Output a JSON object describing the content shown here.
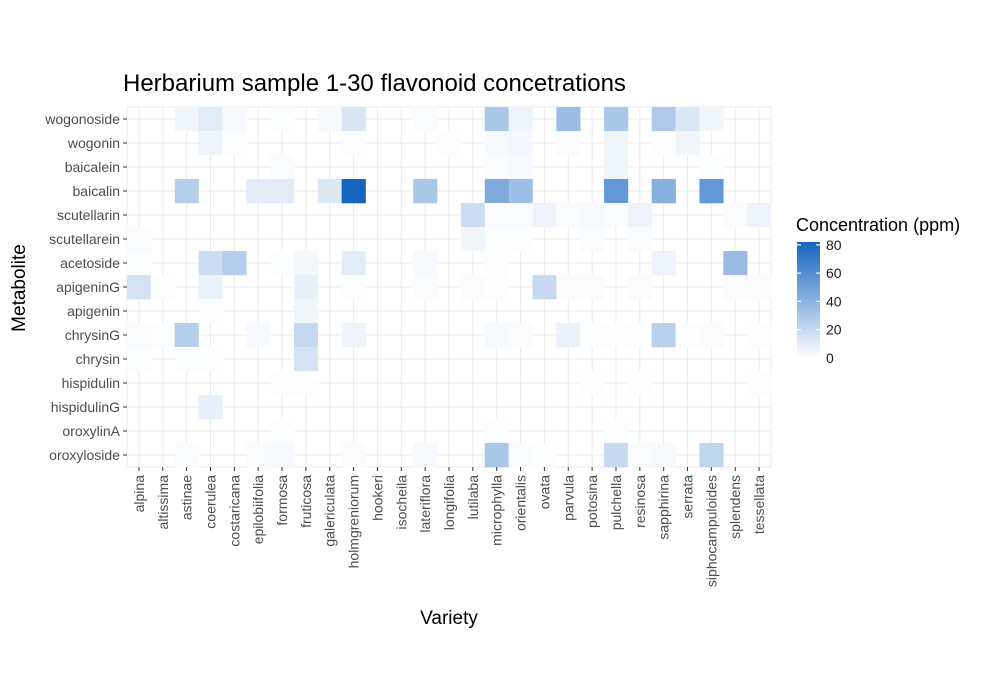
{
  "chart_data": {
    "type": "heatmap",
    "title": "Herbarium sample 1-30 flavonoid concetrations",
    "xlabel": "Variety",
    "ylabel": "Metabolite",
    "x": [
      "alpina",
      "altissima",
      "astinae",
      "coerulea",
      "costaricana",
      "epilobiifolia",
      "formosa",
      "fruticosa",
      "galericulata",
      "holmgreniorum",
      "hookeri",
      "isocheila",
      "lateriflora",
      "longifolia",
      "lutilaba",
      "microphylla",
      "orientalis",
      "ovata",
      "parvula",
      "potosina",
      "pulchella",
      "resinosa",
      "sapphirina",
      "serrata",
      "siphocampuloides",
      "splendens",
      "tessellata"
    ],
    "y": [
      "wogonoside",
      "wogonin",
      "baicalein",
      "baicalin",
      "scutellarin",
      "scutellarein",
      "acetoside",
      "apigeninG",
      "apigenin",
      "chrysinG",
      "chrysin",
      "hispidulin",
      "hispidulinG",
      "oroxylinA",
      "oroxyloside"
    ],
    "values": [
      [
        0,
        0,
        5,
        10,
        3,
        0,
        1,
        0,
        3,
        14,
        0,
        0,
        2,
        0,
        0,
        30,
        6,
        0,
        35,
        0,
        30,
        0,
        28,
        12,
        5,
        0,
        0
      ],
      [
        0,
        0,
        0,
        6,
        1,
        0,
        0,
        0,
        0,
        1,
        0,
        0,
        0,
        1,
        0,
        3,
        4,
        0,
        2,
        0,
        5,
        0,
        1,
        5,
        0,
        0,
        0
      ],
      [
        0,
        0,
        0,
        0,
        0,
        0,
        2,
        0,
        0,
        0,
        0,
        0,
        0,
        0,
        0,
        2,
        3,
        0,
        0,
        0,
        5,
        0,
        0,
        0,
        1,
        0,
        0
      ],
      [
        0,
        0,
        26,
        0,
        0,
        10,
        10,
        0,
        12,
        82,
        0,
        0,
        30,
        0,
        0,
        45,
        34,
        0,
        0,
        0,
        55,
        0,
        42,
        0,
        55,
        0,
        0
      ],
      [
        0,
        0,
        0,
        0,
        0,
        0,
        0,
        0,
        0,
        0,
        0,
        0,
        0,
        0,
        18,
        2,
        2,
        6,
        2,
        3,
        2,
        6,
        0,
        0,
        0,
        2,
        6
      ],
      [
        2,
        0,
        0,
        0,
        0,
        0,
        0,
        0,
        0,
        0,
        0,
        0,
        0,
        0,
        5,
        1,
        1,
        0,
        0,
        2,
        0,
        2,
        0,
        0,
        0,
        0,
        0
      ],
      [
        1,
        0,
        0,
        18,
        26,
        0,
        1,
        4,
        0,
        10,
        0,
        0,
        3,
        0,
        0,
        1,
        0,
        0,
        0,
        0,
        0,
        0,
        6,
        0,
        0,
        36,
        0
      ],
      [
        15,
        1,
        0,
        7,
        0,
        0,
        0,
        8,
        0,
        1,
        0,
        0,
        2,
        0,
        2,
        1,
        0,
        20,
        2,
        2,
        0,
        2,
        0,
        0,
        0,
        2,
        2
      ],
      [
        0,
        0,
        0,
        1,
        0,
        0,
        0,
        5,
        0,
        0,
        0,
        0,
        0,
        0,
        0,
        0,
        0,
        0,
        0,
        0,
        0,
        0,
        0,
        0,
        0,
        0,
        0
      ],
      [
        2,
        1,
        26,
        0,
        0,
        3,
        0,
        20,
        0,
        6,
        0,
        0,
        0,
        0,
        0,
        3,
        2,
        0,
        7,
        1,
        1,
        1,
        25,
        1,
        2,
        0,
        1
      ],
      [
        1,
        0,
        1,
        1,
        0,
        0,
        0,
        15,
        0,
        0,
        0,
        0,
        0,
        0,
        0,
        0,
        0,
        0,
        0,
        0,
        0,
        0,
        0,
        0,
        0,
        0,
        0
      ],
      [
        0,
        0,
        0,
        0,
        0,
        0,
        1,
        1,
        0,
        0,
        0,
        0,
        0,
        0,
        0,
        0,
        0,
        0,
        0,
        1,
        0,
        1,
        0,
        0,
        0,
        0,
        1
      ],
      [
        0,
        0,
        0,
        8,
        0,
        0,
        0,
        0,
        0,
        0,
        0,
        0,
        0,
        0,
        0,
        0,
        0,
        0,
        0,
        0,
        0,
        0,
        0,
        0,
        0,
        0,
        0
      ],
      [
        0,
        0,
        0,
        0,
        0,
        0,
        1,
        0,
        0,
        0,
        0,
        0,
        0,
        0,
        0,
        1,
        0,
        0,
        0,
        0,
        1,
        0,
        0,
        0,
        0,
        0,
        0
      ],
      [
        0,
        0,
        2,
        0,
        0,
        2,
        3,
        0,
        0,
        2,
        0,
        0,
        3,
        0,
        0,
        30,
        2,
        1,
        0,
        0,
        20,
        2,
        3,
        0,
        22,
        0,
        0
      ]
    ],
    "colorbar": {
      "title": "Concentration (ppm)",
      "min": 0,
      "max": 82,
      "ticks": [
        0,
        20,
        40,
        60,
        80
      ],
      "low_color": "#ffffff",
      "high_color": "#1565c0"
    },
    "grid": true,
    "legend_position": "right"
  }
}
